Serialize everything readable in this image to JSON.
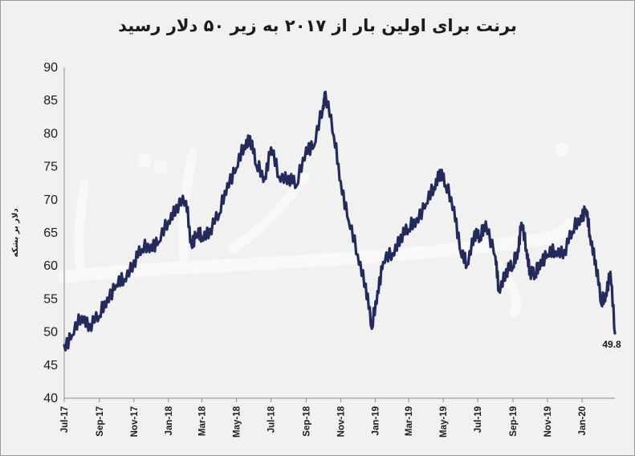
{
  "chart_data": {
    "type": "line",
    "title": "برنت برای اولین بار از ۲۰۱۷ به زیر ۵۰ دلار رسید",
    "xlabel": "",
    "ylabel": "دلار بر بشکه",
    "ylim": [
      40,
      90
    ],
    "yticks": [
      40,
      45,
      50,
      55,
      60,
      65,
      70,
      75,
      80,
      85,
      90
    ],
    "xticks": [
      "Jul-17",
      "Sep-17",
      "Nov-17",
      "Jan-18",
      "Mar-18",
      "May-18",
      "Jul-18",
      "Sep-18",
      "Nov-18",
      "Jan-19",
      "Mar-19",
      "May-19",
      "Jul-19",
      "Sep-19",
      "Nov-19",
      "Jan-20"
    ],
    "grid": false,
    "line_color": "#232a5c",
    "end_label": "49.8",
    "series": [
      {
        "x": [
          "2017-07-01",
          "2017-07-15",
          "2017-08-01",
          "2017-08-15",
          "2017-09-01",
          "2017-09-15",
          "2017-10-01",
          "2017-10-15",
          "2017-11-01",
          "2017-11-15",
          "2017-12-01",
          "2017-12-15",
          "2018-01-01",
          "2018-01-15",
          "2018-02-01",
          "2018-02-10",
          "2018-02-20",
          "2018-03-01",
          "2018-03-15",
          "2018-04-01",
          "2018-04-15",
          "2018-05-01",
          "2018-05-15",
          "2018-05-25",
          "2018-06-05",
          "2018-06-20",
          "2018-07-01",
          "2018-07-15",
          "2018-08-01",
          "2018-08-15",
          "2018-09-01",
          "2018-09-15",
          "2018-10-01",
          "2018-10-05",
          "2018-10-20",
          "2018-11-01",
          "2018-11-15",
          "2018-12-01",
          "2018-12-15",
          "2018-12-26",
          "2019-01-05",
          "2019-01-15",
          "2019-02-01",
          "2019-02-15",
          "2019-03-01",
          "2019-03-15",
          "2019-04-01",
          "2019-04-15",
          "2019-04-25",
          "2019-05-05",
          "2019-05-20",
          "2019-06-01",
          "2019-06-12",
          "2019-06-25",
          "2019-07-05",
          "2019-07-15",
          "2019-08-01",
          "2019-08-07",
          "2019-08-20",
          "2019-09-01",
          "2019-09-10",
          "2019-09-16",
          "2019-09-25",
          "2019-10-01",
          "2019-10-10",
          "2019-10-20",
          "2019-11-01",
          "2019-11-15",
          "2019-12-01",
          "2019-12-15",
          "2019-12-30",
          "2020-01-08",
          "2020-01-15",
          "2020-01-25",
          "2020-02-04",
          "2020-02-12",
          "2020-02-20",
          "2020-02-28"
        ],
        "values": [
          48.0,
          49.5,
          52.4,
          51.2,
          52.4,
          55.2,
          57.1,
          58.0,
          60.8,
          62.5,
          63.2,
          63.6,
          66.8,
          69.2,
          69.8,
          63.5,
          64.8,
          64.4,
          65.6,
          67.9,
          72.5,
          74.8,
          78.2,
          79.6,
          75.2,
          73.4,
          77.9,
          73.5,
          73.6,
          72.1,
          77.9,
          78.1,
          84.2,
          86.3,
          79.6,
          72.8,
          66.8,
          61.7,
          57.3,
          50.5,
          56.2,
          60.6,
          61.9,
          64.7,
          65.5,
          67.2,
          69.4,
          71.9,
          74.5,
          72.2,
          68.9,
          61.9,
          60.2,
          65.2,
          64.0,
          66.7,
          61.4,
          56.2,
          59.5,
          59.9,
          62.5,
          66.5,
          62.4,
          59.4,
          58.4,
          60.9,
          61.7,
          62.2,
          62.4,
          65.2,
          67.6,
          68.5,
          64.6,
          60.8,
          54.2,
          55.9,
          59.1,
          49.8
        ]
      }
    ]
  }
}
